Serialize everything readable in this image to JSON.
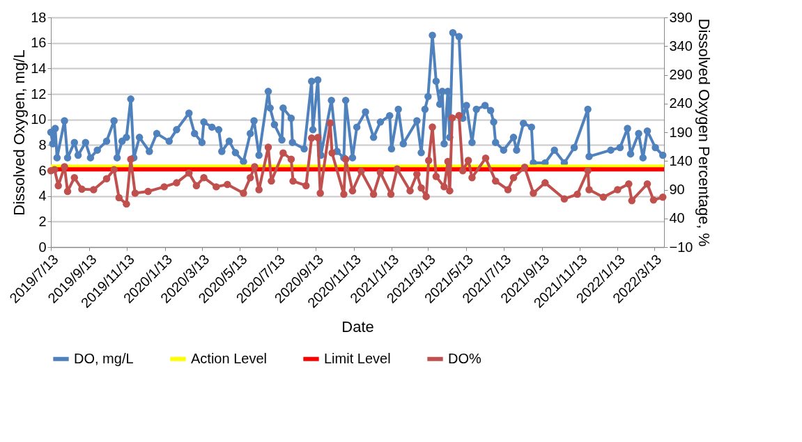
{
  "chart_data": {
    "type": "line",
    "xlabel": "Date",
    "ylabel": "Dissolved Oxygen, mg/L",
    "y2label": "Dissolved Oxygen Percentage, %",
    "xlim": [
      "2019-07-13",
      "2022-03-29"
    ],
    "xticks": [
      {
        "value": "2019-07-13",
        "label": "2019/7/13"
      },
      {
        "value": "2019-09-13",
        "label": "2019/9/13"
      },
      {
        "value": "2019-11-13",
        "label": "2019/11/13"
      },
      {
        "value": "2020-01-13",
        "label": "2020/1/13"
      },
      {
        "value": "2020-03-13",
        "label": "2020/3/13"
      },
      {
        "value": "2020-05-13",
        "label": "2020/5/13"
      },
      {
        "value": "2020-07-13",
        "label": "2020/7/13"
      },
      {
        "value": "2020-09-13",
        "label": "2020/9/13"
      },
      {
        "value": "2020-11-13",
        "label": "2020/11/13"
      },
      {
        "value": "2021-01-13",
        "label": "2021/1/13"
      },
      {
        "value": "2021-03-13",
        "label": "2021/3/13"
      },
      {
        "value": "2021-05-13",
        "label": "2021/5/13"
      },
      {
        "value": "2021-07-13",
        "label": "2021/7/13"
      },
      {
        "value": "2021-09-13",
        "label": "2021/9/13"
      },
      {
        "value": "2021-11-13",
        "label": "2021/11/13"
      },
      {
        "value": "2022-01-13",
        "label": "2022/1/13"
      },
      {
        "value": "2022-03-13",
        "label": "2022/3/13"
      }
    ],
    "ylim": [
      0,
      18
    ],
    "yticks": [
      0,
      2,
      4,
      6,
      8,
      10,
      12,
      14,
      16,
      18
    ],
    "y2lim": [
      -10,
      390
    ],
    "y2ticks": [
      -10,
      40,
      90,
      140,
      190,
      240,
      290,
      340,
      390
    ],
    "grid": "y",
    "legend": "bottom",
    "line_style": "solid",
    "series": [
      {
        "name": "DO, mg/L",
        "color": "#4f81bd",
        "marker": "circle",
        "axis": "y",
        "x": [
          "2019-07-13",
          "2019-07-16",
          "2019-07-20",
          "2019-07-23",
          "2019-08-04",
          "2019-08-09",
          "2019-08-20",
          "2019-08-26",
          "2019-09-07",
          "2019-09-15",
          "2019-09-26",
          "2019-10-11",
          "2019-10-23",
          "2019-10-28",
          "2019-11-05",
          "2019-11-12",
          "2019-11-19",
          "2019-11-24",
          "2019-12-03",
          "2019-12-19",
          "2019-12-31",
          "2020-01-20",
          "2020-02-01",
          "2020-02-21",
          "2020-03-01",
          "2020-03-13",
          "2020-03-16",
          "2020-03-29",
          "2020-04-09",
          "2020-04-14",
          "2020-04-26",
          "2020-05-06",
          "2020-05-19",
          "2020-05-30",
          "2020-06-05",
          "2020-06-13",
          "2020-06-28",
          "2020-07-01",
          "2020-07-08",
          "2020-07-20",
          "2020-07-22",
          "2020-08-04",
          "2020-08-06",
          "2020-08-25",
          "2020-09-06",
          "2020-09-08",
          "2020-09-16",
          "2020-09-21",
          "2020-10-08",
          "2020-10-17",
          "2020-10-28",
          "2020-10-31",
          "2020-11-11",
          "2020-11-18",
          "2020-12-02",
          "2020-12-15",
          "2020-12-26",
          "2021-01-10",
          "2021-01-13",
          "2021-01-24",
          "2021-02-01",
          "2021-02-23",
          "2021-03-02",
          "2021-03-08",
          "2021-03-13",
          "2021-03-20",
          "2021-03-26",
          "2021-04-01",
          "2021-04-05",
          "2021-04-08",
          "2021-04-14",
          "2021-04-17",
          "2021-04-22",
          "2021-05-02",
          "2021-05-08",
          "2021-05-14",
          "2021-05-23",
          "2021-05-30",
          "2021-06-13",
          "2021-06-22",
          "2021-06-27",
          "2021-06-30",
          "2021-07-13",
          "2021-07-29",
          "2021-08-03",
          "2021-08-14",
          "2021-08-27",
          "2021-08-30",
          "2021-09-18",
          "2021-10-03",
          "2021-10-19",
          "2021-11-04",
          "2021-11-26",
          "2021-11-28",
          "2022-01-02",
          "2022-01-17",
          "2022-01-29",
          "2022-02-03",
          "2022-02-16",
          "2022-02-23",
          "2022-03-02",
          "2022-03-15",
          "2022-03-27"
        ],
        "values": [
          9.0,
          8.1,
          9.3,
          7.0,
          9.9,
          7.0,
          8.2,
          7.2,
          8.2,
          7.0,
          7.6,
          8.3,
          9.9,
          7.0,
          8.3,
          8.6,
          11.6,
          7.0,
          8.6,
          7.5,
          8.9,
          8.3,
          9.2,
          10.5,
          8.9,
          8.2,
          9.8,
          9.4,
          9.2,
          7.5,
          8.3,
          7.4,
          6.7,
          8.9,
          9.9,
          7.2,
          12.2,
          10.9,
          9.6,
          8.4,
          10.9,
          10.1,
          8.2,
          7.7,
          13.0,
          9.2,
          13.1,
          7.2,
          11.5,
          7.5,
          7.0,
          11.5,
          7.0,
          9.4,
          10.6,
          8.6,
          9.8,
          10.3,
          7.7,
          10.8,
          8.1,
          9.9,
          7.4,
          10.8,
          11.8,
          16.6,
          13.0,
          11.2,
          12.2,
          8.1,
          12.2,
          8.6,
          16.8,
          16.5,
          10.1,
          11.1,
          8.2,
          10.8,
          11.1,
          10.7,
          9.8,
          8.2,
          7.6,
          8.6,
          7.6,
          9.7,
          9.4,
          6.6,
          6.6,
          7.6,
          6.6,
          7.8,
          10.8,
          7.1,
          7.6,
          7.8,
          9.3,
          7.3,
          8.9,
          7.0,
          9.1,
          7.8,
          7.2
        ]
      },
      {
        "name": "Action Level",
        "color": "#ffff00",
        "marker": "none",
        "axis": "y",
        "x": [
          "2019-07-13",
          "2022-03-29"
        ],
        "values": [
          6.3,
          6.3
        ]
      },
      {
        "name": "Limit Level",
        "color": "#ff0000",
        "marker": "none",
        "axis": "y",
        "x": [
          "2019-07-13",
          "2022-03-29"
        ],
        "values": [
          6.1,
          6.1
        ]
      },
      {
        "name": "DO%",
        "color": "#c0504d",
        "marker": "circle",
        "axis": "y2",
        "x": [
          "2019-07-13",
          "2019-07-19",
          "2019-07-25",
          "2019-08-04",
          "2019-08-09",
          "2019-08-20",
          "2019-09-01",
          "2019-09-20",
          "2019-10-11",
          "2019-10-23",
          "2019-10-31",
          "2019-11-12",
          "2019-11-19",
          "2019-11-26",
          "2019-12-17",
          "2020-01-12",
          "2020-02-01",
          "2020-02-21",
          "2020-03-04",
          "2020-03-16",
          "2020-04-05",
          "2020-04-23",
          "2020-05-19",
          "2020-05-30",
          "2020-06-06",
          "2020-06-13",
          "2020-06-28",
          "2020-07-03",
          "2020-07-22",
          "2020-08-04",
          "2020-08-07",
          "2020-08-28",
          "2020-09-06",
          "2020-09-16",
          "2020-09-20",
          "2020-10-06",
          "2020-10-09",
          "2020-10-28",
          "2020-10-31",
          "2020-11-11",
          "2020-11-25",
          "2020-12-15",
          "2020-12-26",
          "2021-01-12",
          "2021-01-22",
          "2021-02-12",
          "2021-02-23",
          "2021-03-02",
          "2021-03-10",
          "2021-03-14",
          "2021-03-20",
          "2021-03-26",
          "2021-04-08",
          "2021-04-14",
          "2021-04-17",
          "2021-04-21",
          "2021-05-02",
          "2021-05-08",
          "2021-05-17",
          "2021-05-23",
          "2021-06-14",
          "2021-06-30",
          "2021-07-20",
          "2021-07-29",
          "2021-08-16",
          "2021-08-30",
          "2021-09-18",
          "2021-10-19",
          "2021-11-09",
          "2021-11-26",
          "2021-11-28",
          "2021-12-21",
          "2022-01-13",
          "2022-01-31",
          "2022-02-05",
          "2022-03-02",
          "2022-03-12",
          "2022-03-27"
        ],
        "values": [
          123,
          125,
          97,
          130,
          87,
          111,
          91,
          90,
          109,
          125,
          76,
          65,
          143,
          84,
          87,
          95,
          102,
          119,
          97,
          111,
          95,
          99,
          84,
          111,
          130,
          90,
          164,
          105,
          154,
          143,
          105,
          97,
          180,
          181,
          84,
          206,
          154,
          82,
          143,
          88,
          122,
          82,
          120,
          82,
          126,
          88,
          117,
          93,
          78,
          141,
          199,
          113,
          95,
          139,
          88,
          215,
          219,
          123,
          141,
          111,
          145,
          105,
          90,
          111,
          129,
          84,
          102,
          74,
          82,
          123,
          90,
          77,
          90,
          100,
          71,
          100,
          72,
          77
        ]
      }
    ]
  }
}
